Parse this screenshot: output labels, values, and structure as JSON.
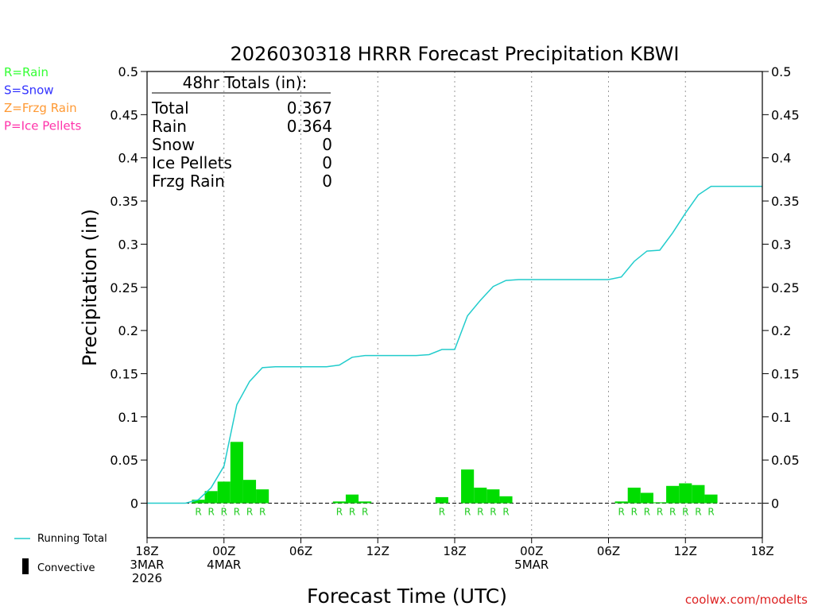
{
  "chart_data": {
    "type": "bar",
    "title": "2026030318 HRRR Forecast Precipitation KBWI",
    "xlabel": "Forecast Time (UTC)",
    "ylabel": "Precipitation (in)",
    "ylim": [
      -0.04,
      0.5
    ],
    "xlim_hours": [
      0,
      48
    ],
    "y_ticks": [
      "0",
      "0.05",
      "0.1",
      "0.15",
      "0.2",
      "0.25",
      "0.3",
      "0.35",
      "0.4",
      "0.45",
      "0.5"
    ],
    "y_tick_values": [
      0,
      0.05,
      0.1,
      0.15,
      0.2,
      0.25,
      0.3,
      0.35,
      0.4,
      0.45,
      0.5
    ],
    "x_ticks": [
      {
        "hour": 0,
        "lines": [
          "18Z",
          "3MAR",
          "2026"
        ]
      },
      {
        "hour": 6,
        "lines": [
          "00Z",
          "4MAR"
        ]
      },
      {
        "hour": 12,
        "lines": [
          "06Z"
        ]
      },
      {
        "hour": 18,
        "lines": [
          "12Z"
        ]
      },
      {
        "hour": 24,
        "lines": [
          "18Z"
        ]
      },
      {
        "hour": 30,
        "lines": [
          "00Z",
          "5MAR"
        ]
      },
      {
        "hour": 36,
        "lines": [
          "06Z"
        ]
      },
      {
        "hour": 42,
        "lines": [
          "12Z"
        ]
      },
      {
        "hour": 48,
        "lines": [
          "18Z"
        ]
      }
    ],
    "grid": true,
    "totals": {
      "heading": "48hr Totals (in):",
      "rows": [
        {
          "label": "Total",
          "value": "0.367"
        },
        {
          "label": "Rain",
          "value": "0.364"
        },
        {
          "label": "Snow",
          "value": "0"
        },
        {
          "label": "Ice Pellets",
          "value": "0"
        },
        {
          "label": "Frzg Rain",
          "value": "0"
        }
      ]
    },
    "ptype_legend": [
      {
        "text": "R=Rain",
        "color": "#33ff33"
      },
      {
        "text": "S=Snow",
        "color": "#3333ff"
      },
      {
        "text": "Z=Frzg Rain",
        "color": "#ff9933"
      },
      {
        "text": "P=Ice Pellets",
        "color": "#ff33aa"
      }
    ],
    "legend": {
      "running_total": "Running Total",
      "convective": "Convective"
    },
    "series": [
      {
        "name": "Hourly precipitation",
        "kind": "bars",
        "color": "#00dd00",
        "points": [
          {
            "hour": 4,
            "value": 0.004,
            "ptype": "R"
          },
          {
            "hour": 5,
            "value": 0.014,
            "ptype": "R"
          },
          {
            "hour": 6,
            "value": 0.025,
            "ptype": "R"
          },
          {
            "hour": 7,
            "value": 0.071,
            "ptype": "R"
          },
          {
            "hour": 8,
            "value": 0.027,
            "ptype": "R"
          },
          {
            "hour": 9,
            "value": 0.016,
            "ptype": "R"
          },
          {
            "hour": 15,
            "value": 0.002,
            "ptype": "R"
          },
          {
            "hour": 16,
            "value": 0.01,
            "ptype": "R"
          },
          {
            "hour": 17,
            "value": 0.002,
            "ptype": "R"
          },
          {
            "hour": 23,
            "value": 0.007,
            "ptype": "R"
          },
          {
            "hour": 25,
            "value": 0.039,
            "ptype": "R"
          },
          {
            "hour": 26,
            "value": 0.018,
            "ptype": "R"
          },
          {
            "hour": 27,
            "value": 0.016,
            "ptype": "R"
          },
          {
            "hour": 28,
            "value": 0.008,
            "ptype": "R"
          },
          {
            "hour": 37,
            "value": 0.002,
            "ptype": "R"
          },
          {
            "hour": 38,
            "value": 0.018,
            "ptype": "R"
          },
          {
            "hour": 39,
            "value": 0.012,
            "ptype": "R"
          },
          {
            "hour": 40,
            "value": 0.001,
            "ptype": "R"
          },
          {
            "hour": 41,
            "value": 0.02,
            "ptype": "R"
          },
          {
            "hour": 42,
            "value": 0.023,
            "ptype": "R"
          },
          {
            "hour": 43,
            "value": 0.021,
            "ptype": "R"
          },
          {
            "hour": 44,
            "value": 0.01,
            "ptype": "R"
          }
        ]
      },
      {
        "name": "Running Total",
        "kind": "line",
        "color": "#22cccc",
        "points": [
          [
            0,
            0
          ],
          [
            1,
            0
          ],
          [
            2,
            0
          ],
          [
            3,
            0
          ],
          [
            4,
            0.004
          ],
          [
            5,
            0.018
          ],
          [
            6,
            0.043
          ],
          [
            7,
            0.114
          ],
          [
            8,
            0.141
          ],
          [
            9,
            0.157
          ],
          [
            10,
            0.158
          ],
          [
            11,
            0.158
          ],
          [
            12,
            0.158
          ],
          [
            13,
            0.158
          ],
          [
            14,
            0.158
          ],
          [
            15,
            0.16
          ],
          [
            16,
            0.169
          ],
          [
            17,
            0.171
          ],
          [
            18,
            0.171
          ],
          [
            19,
            0.171
          ],
          [
            20,
            0.171
          ],
          [
            21,
            0.171
          ],
          [
            22,
            0.172
          ],
          [
            23,
            0.178
          ],
          [
            24,
            0.178
          ],
          [
            25,
            0.217
          ],
          [
            26,
            0.235
          ],
          [
            27,
            0.251
          ],
          [
            28,
            0.258
          ],
          [
            29,
            0.259
          ],
          [
            30,
            0.259
          ],
          [
            31,
            0.259
          ],
          [
            32,
            0.259
          ],
          [
            33,
            0.259
          ],
          [
            34,
            0.259
          ],
          [
            35,
            0.259
          ],
          [
            36,
            0.259
          ],
          [
            37,
            0.262
          ],
          [
            38,
            0.28
          ],
          [
            39,
            0.292
          ],
          [
            40,
            0.293
          ],
          [
            41,
            0.313
          ],
          [
            42,
            0.336
          ],
          [
            43,
            0.357
          ],
          [
            44,
            0.367
          ],
          [
            45,
            0.367
          ],
          [
            46,
            0.367
          ],
          [
            47,
            0.367
          ],
          [
            48,
            0.367
          ]
        ]
      }
    ]
  },
  "credit": "coolwx.com/modelts"
}
